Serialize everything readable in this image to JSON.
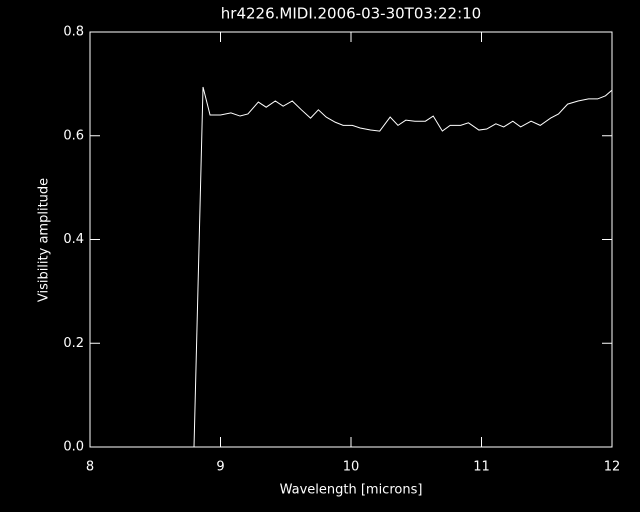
{
  "chart_data": {
    "type": "line",
    "title": "hr4226.MIDI.2006-03-30T03:22:10",
    "x_label": "Wavelength [microns]",
    "y_label": "Visibility amplitude",
    "x": [
      8.797,
      8.866,
      8.92,
      9.0,
      9.08,
      9.15,
      9.21,
      9.29,
      9.35,
      9.42,
      9.48,
      9.55,
      9.62,
      9.69,
      9.75,
      9.81,
      9.88,
      9.94,
      10.01,
      10.07,
      10.15,
      10.22,
      10.3,
      10.36,
      10.42,
      10.49,
      10.57,
      10.63,
      10.7,
      10.76,
      10.84,
      10.9,
      10.98,
      11.04,
      11.11,
      11.17,
      11.24,
      11.3,
      11.38,
      11.45,
      11.53,
      11.59,
      11.66,
      11.74,
      11.82,
      11.89,
      11.95,
      12.0
    ],
    "series": [
      {
        "color": "#ffffff",
        "values": [
          0,
          0.694,
          0.64,
          0.64,
          0.644,
          0.638,
          0.642,
          0.665,
          0.655,
          0.667,
          0.657,
          0.667,
          0.65,
          0.634,
          0.65,
          0.636,
          0.626,
          0.62,
          0.62,
          0.615,
          0.611,
          0.609,
          0.636,
          0.62,
          0.63,
          0.628,
          0.628,
          0.638,
          0.609,
          0.62,
          0.62,
          0.625,
          0.611,
          0.613,
          0.623,
          0.617,
          0.628,
          0.617,
          0.628,
          0.62,
          0.634,
          0.642,
          0.661,
          0.667,
          0.671,
          0.671,
          0.677,
          0.688
        ]
      }
    ],
    "xlim": [
      8,
      12
    ],
    "xticks": [
      8,
      9,
      10,
      11,
      12
    ],
    "ylim": [
      0,
      0.8
    ],
    "yticks": [
      {
        "value": 0,
        "label": "0.0"
      },
      0.2,
      0.4,
      0.6,
      0.8
    ]
  }
}
